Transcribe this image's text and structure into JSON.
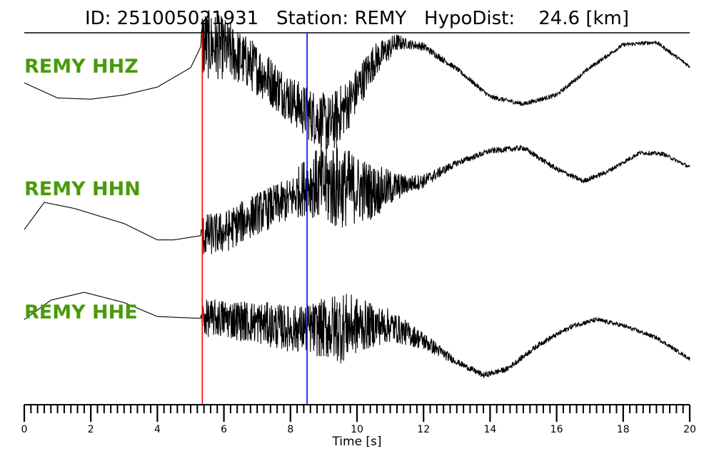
{
  "title": "ID: 251005021931   Station: REMY   HypoDist:    24.6 [km]",
  "chart_data": {
    "type": "line",
    "xlabel": "Time [s]",
    "xlim": [
      0,
      20
    ],
    "xticks": [
      "0",
      "2",
      "4",
      "6",
      "8",
      "10",
      "12",
      "14",
      "16",
      "18",
      "20"
    ],
    "minor_tick_step": 0.2,
    "markers": [
      {
        "phase": "P",
        "time": 5.35,
        "color": "#ff0000"
      },
      {
        "phase": "S",
        "time": 8.5,
        "color": "#0000ff"
      }
    ],
    "label_color": "#4a9a0a",
    "trace_color": "#000000",
    "series": [
      {
        "name": "REMY HHZ",
        "trend": [
          [
            0,
            -0.05
          ],
          [
            1,
            -0.3
          ],
          [
            2,
            -0.32
          ],
          [
            3,
            -0.25
          ],
          [
            4,
            -0.12
          ],
          [
            5,
            0.2
          ],
          [
            5.35,
            0.6
          ],
          [
            6,
            0.52
          ],
          [
            7,
            0.18
          ],
          [
            8,
            -0.32
          ],
          [
            8.5,
            -0.55
          ],
          [
            9.2,
            -0.75
          ],
          [
            9.8,
            -0.35
          ],
          [
            10.5,
            0.3
          ],
          [
            11.2,
            0.62
          ],
          [
            12,
            0.55
          ],
          [
            13,
            0.18
          ],
          [
            14,
            -0.28
          ],
          [
            15,
            -0.4
          ],
          [
            16,
            -0.25
          ],
          [
            17,
            0.2
          ],
          [
            18,
            0.58
          ],
          [
            19,
            0.62
          ],
          [
            20,
            0.22
          ]
        ],
        "noise": [
          [
            0,
            0
          ],
          [
            5.3,
            0
          ],
          [
            5.35,
            0.6
          ],
          [
            6.5,
            0.45
          ],
          [
            8,
            0.4
          ],
          [
            9.3,
            0.5
          ],
          [
            10.5,
            0.3
          ],
          [
            11.5,
            0.08
          ],
          [
            13,
            0.04
          ],
          [
            20,
            0.03
          ]
        ]
      },
      {
        "name": "REMY HHN",
        "trend": [
          [
            0,
            -0.45
          ],
          [
            0.6,
            0.0
          ],
          [
            1.5,
            -0.1
          ],
          [
            3,
            -0.35
          ],
          [
            4,
            -0.62
          ],
          [
            4.5,
            -0.62
          ],
          [
            5.3,
            -0.55
          ],
          [
            6,
            -0.5
          ],
          [
            7,
            -0.18
          ],
          [
            8,
            0.05
          ],
          [
            8.5,
            0.3
          ],
          [
            9.3,
            0.28
          ],
          [
            10.5,
            0.18
          ],
          [
            12,
            0.35
          ],
          [
            13,
            0.65
          ],
          [
            14,
            0.85
          ],
          [
            15,
            0.9
          ],
          [
            16,
            0.55
          ],
          [
            16.8,
            0.35
          ],
          [
            17.5,
            0.5
          ],
          [
            18.5,
            0.82
          ],
          [
            19.2,
            0.8
          ],
          [
            20,
            0.58
          ]
        ],
        "noise": [
          [
            0,
            0
          ],
          [
            5.3,
            0
          ],
          [
            5.35,
            0.35
          ],
          [
            8,
            0.35
          ],
          [
            9.3,
            0.75
          ],
          [
            10.5,
            0.45
          ],
          [
            11.5,
            0.15
          ],
          [
            13,
            0.05
          ],
          [
            20,
            0.03
          ]
        ]
      },
      {
        "name": "REMY HHE",
        "trend": [
          [
            0,
            0.1
          ],
          [
            0.8,
            0.42
          ],
          [
            1.8,
            0.55
          ],
          [
            3,
            0.38
          ],
          [
            4,
            0.15
          ],
          [
            5.3,
            0.12
          ],
          [
            6,
            0.12
          ],
          [
            7,
            0.05
          ],
          [
            8,
            -0.05
          ],
          [
            9,
            -0.05
          ],
          [
            10,
            0.0
          ],
          [
            11,
            0.0
          ],
          [
            12,
            -0.25
          ],
          [
            13,
            -0.6
          ],
          [
            13.8,
            -0.82
          ],
          [
            14.5,
            -0.72
          ],
          [
            15.5,
            -0.3
          ],
          [
            16.5,
            0.0
          ],
          [
            17.2,
            0.1
          ],
          [
            18,
            0.0
          ],
          [
            19,
            -0.2
          ],
          [
            20,
            -0.55
          ]
        ],
        "noise": [
          [
            0,
            0
          ],
          [
            5.3,
            0
          ],
          [
            5.35,
            0.3
          ],
          [
            8.5,
            0.4
          ],
          [
            9.5,
            0.6
          ],
          [
            10.5,
            0.35
          ],
          [
            11.5,
            0.2
          ],
          [
            13,
            0.05
          ],
          [
            20,
            0.03
          ]
        ]
      }
    ]
  }
}
